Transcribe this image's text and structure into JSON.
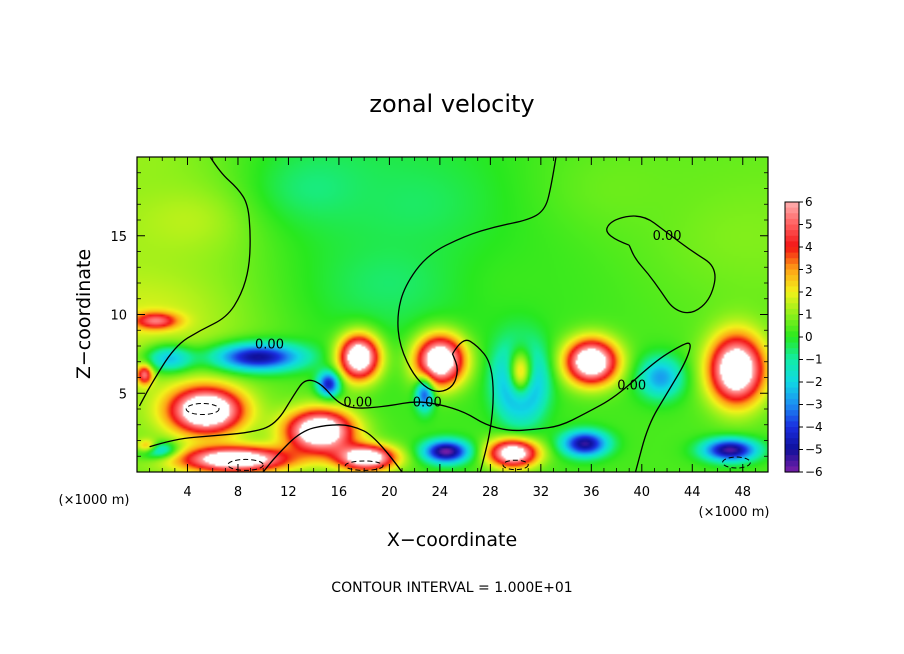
{
  "chart_data": {
    "type": "heatmap",
    "title": "zonal velocity",
    "xlabel": "X−coordinate",
    "ylabel": "Z−coordinate",
    "x_unit_left": "(×1000 m)",
    "x_unit_right": "(×1000 m)",
    "xlim": [
      0,
      50
    ],
    "ylim": [
      0,
      20
    ],
    "x_ticks": [
      {
        "value": 4,
        "label": "4"
      },
      {
        "value": 8,
        "label": "8"
      },
      {
        "value": 12,
        "label": "12"
      },
      {
        "value": 16,
        "label": "16"
      },
      {
        "value": 20,
        "label": "20"
      },
      {
        "value": 24,
        "label": "24"
      },
      {
        "value": 28,
        "label": "28"
      },
      {
        "value": 32,
        "label": "32"
      },
      {
        "value": 36,
        "label": "36"
      },
      {
        "value": 40,
        "label": "40"
      },
      {
        "value": 44,
        "label": "44"
      },
      {
        "value": 48,
        "label": "48"
      }
    ],
    "y_ticks": [
      {
        "value": 5,
        "label": "5"
      },
      {
        "value": 10,
        "label": "10"
      },
      {
        "value": 15,
        "label": "15"
      }
    ],
    "colorbar": {
      "min": -6,
      "max": 6,
      "labels": [
        "6",
        "5",
        "4",
        "3",
        "2",
        "1",
        "0",
        "−1",
        "−2",
        "−3",
        "−4",
        "−5",
        "−6"
      ],
      "values": [
        6,
        5,
        4,
        3,
        2,
        1,
        0,
        -1,
        -2,
        -3,
        -4,
        -5,
        -6
      ],
      "stops": [
        {
          "v": -6,
          "color": "#7a1fa8"
        },
        {
          "v": -5,
          "color": "#10109a"
        },
        {
          "v": -4,
          "color": "#1a2ee0"
        },
        {
          "v": -3,
          "color": "#1c8ff2"
        },
        {
          "v": -2,
          "color": "#10d8e4"
        },
        {
          "v": -1,
          "color": "#12eca6"
        },
        {
          "v": 0,
          "color": "#28e81e"
        },
        {
          "v": 1,
          "color": "#8ff01a"
        },
        {
          "v": 2,
          "color": "#f2f21a"
        },
        {
          "v": 3,
          "color": "#ffa216"
        },
        {
          "v": 4,
          "color": "#f21414"
        },
        {
          "v": 5,
          "color": "#ff5f5f"
        },
        {
          "v": 6,
          "color": "#ffb0b0"
        }
      ],
      "out_of_range_color": "#ffffff"
    },
    "contour_labels": [
      {
        "text": "0.00",
        "x": 10.5,
        "z": 8.1
      },
      {
        "text": "0.00",
        "x": 17.5,
        "z": 4.4
      },
      {
        "text": "0.00",
        "x": 23.0,
        "z": 4.4
      },
      {
        "text": "0.00",
        "x": 39.2,
        "z": 5.5
      },
      {
        "text": "0.00",
        "x": 42.0,
        "z": 15.0
      }
    ],
    "zero_contours": [
      [
        [
          5.8,
          20
        ],
        [
          6.6,
          19.0
        ],
        [
          8.0,
          18.0
        ],
        [
          8.8,
          17.0
        ],
        [
          9.0,
          15.0
        ],
        [
          8.9,
          13.0
        ],
        [
          8.3,
          11.3
        ],
        [
          7.1,
          9.8
        ],
        [
          5.0,
          9.0
        ],
        [
          3.0,
          8.0
        ],
        [
          1.0,
          5.4
        ],
        [
          0.2,
          4.2
        ]
      ],
      [
        [
          1.0,
          1.6
        ],
        [
          3.0,
          2.1
        ],
        [
          6.0,
          2.3
        ],
        [
          9.0,
          2.5
        ],
        [
          11.0,
          3.0
        ],
        [
          12.5,
          5.0
        ],
        [
          13.3,
          5.9
        ],
        [
          14.5,
          5.7
        ],
        [
          16.0,
          4.3
        ],
        [
          17.5,
          4.0
        ],
        [
          20.0,
          4.2
        ],
        [
          22.0,
          4.5
        ],
        [
          24.0,
          4.3
        ],
        [
          26.0,
          3.8
        ],
        [
          27.6,
          3.0
        ],
        [
          29.5,
          2.6
        ],
        [
          31.5,
          2.7
        ],
        [
          33.5,
          2.9
        ],
        [
          35.5,
          3.7
        ],
        [
          38.0,
          4.8
        ],
        [
          41.0,
          7.0
        ],
        [
          43.0,
          8.0
        ],
        [
          44.0,
          8.3
        ],
        [
          43.5,
          7.0
        ],
        [
          42.0,
          5.0
        ],
        [
          40.5,
          3.0
        ],
        [
          39.5,
          0.0
        ]
      ],
      [
        [
          21.0,
          0.0
        ],
        [
          19.0,
          2.2
        ],
        [
          17.0,
          3.0
        ],
        [
          15.0,
          3.0
        ],
        [
          13.0,
          2.6
        ],
        [
          11.0,
          1.0
        ],
        [
          10.0,
          0.0
        ]
      ],
      [
        [
          25.0,
          7.5
        ],
        [
          25.8,
          8.6
        ],
        [
          27.0,
          8.0
        ],
        [
          28.0,
          7.0
        ],
        [
          28.3,
          5.0
        ],
        [
          28.0,
          2.5
        ],
        [
          27.2,
          0.0
        ]
      ],
      [
        [
          33.2,
          20
        ],
        [
          32.8,
          18.0
        ],
        [
          32.3,
          16.6
        ],
        [
          31.0,
          16.0
        ],
        [
          28.5,
          15.6
        ],
        [
          26.0,
          15.0
        ],
        [
          23.0,
          13.8
        ],
        [
          21.2,
          11.8
        ],
        [
          20.6,
          10.0
        ],
        [
          20.8,
          8.0
        ],
        [
          22.0,
          6.0
        ],
        [
          23.5,
          5.0
        ],
        [
          25.0,
          5.3
        ],
        [
          25.5,
          6.5
        ],
        [
          25.0,
          7.5
        ]
      ],
      [
        [
          39.0,
          14.4
        ],
        [
          37.0,
          15.0
        ],
        [
          37.5,
          16.0
        ],
        [
          40.0,
          16.4
        ],
        [
          42.0,
          15.2
        ],
        [
          44.0,
          14.0
        ],
        [
          46.0,
          13.0
        ],
        [
          45.5,
          11.0
        ],
        [
          44.0,
          10.0
        ],
        [
          42.5,
          10.3
        ],
        [
          41.5,
          11.5
        ],
        [
          40.5,
          12.6
        ],
        [
          39.5,
          13.5
        ],
        [
          39.0,
          14.4
        ]
      ]
    ],
    "dashed_contours": [
      {
        "cx": 5.2,
        "cz": 4.0,
        "rx": 1.3,
        "rz": 0.35
      },
      {
        "cx": 8.6,
        "cz": 0.45,
        "rx": 1.4,
        "rz": 0.35
      },
      {
        "cx": 18.0,
        "cz": 0.4,
        "rx": 1.5,
        "rz": 0.3
      },
      {
        "cx": 30.0,
        "cz": 0.45,
        "rx": 1.0,
        "rz": 0.3
      },
      {
        "cx": 47.5,
        "cz": 0.6,
        "rx": 1.1,
        "rz": 0.35
      }
    ],
    "field": {
      "background": [
        {
          "x": 0,
          "z": 20,
          "v": 1.1
        },
        {
          "x": 4,
          "z": 16,
          "v": 1.6
        },
        {
          "x": 1,
          "z": 10,
          "v": 1.8
        },
        {
          "x": 14,
          "z": 18,
          "v": -0.9
        },
        {
          "x": 22,
          "z": 17,
          "v": -0.6
        },
        {
          "x": 20,
          "z": 12,
          "v": -0.7
        },
        {
          "x": 30,
          "z": 12,
          "v": 0.2
        },
        {
          "x": 38,
          "z": 18,
          "v": 0.7
        },
        {
          "x": 48,
          "z": 15,
          "v": 0.9
        }
      ],
      "cells": [
        {
          "x": 5.5,
          "z": 3.9,
          "rx": 3.2,
          "rz": 1.6,
          "v": 6.5
        },
        {
          "x": 9.5,
          "z": 7.3,
          "rx": 4.0,
          "rz": 1.0,
          "v": -4.6
        },
        {
          "x": 2.5,
          "z": 7.2,
          "rx": 2.2,
          "rz": 1.0,
          "v": -2.8
        },
        {
          "x": 1.5,
          "z": 9.6,
          "rx": 2.0,
          "rz": 0.6,
          "v": 3.0
        },
        {
          "x": 0.6,
          "z": 6.2,
          "rx": 0.7,
          "rz": 0.7,
          "v": 3.5
        },
        {
          "x": 14.5,
          "z": 2.6,
          "rx": 3.0,
          "rz": 1.5,
          "v": 6.5
        },
        {
          "x": 7.8,
          "z": 0.8,
          "rx": 4.8,
          "rz": 0.9,
          "v": 6.0
        },
        {
          "x": 1.5,
          "z": 1.4,
          "rx": 1.8,
          "rz": 0.6,
          "v": -3.0
        },
        {
          "x": 17.6,
          "z": 7.3,
          "rx": 1.8,
          "rz": 1.6,
          "v": 6.5
        },
        {
          "x": 15.2,
          "z": 5.6,
          "rx": 1.0,
          "rz": 0.9,
          "v": -4.0
        },
        {
          "x": 22.8,
          "z": 5.0,
          "rx": 0.8,
          "rz": 1.2,
          "v": -3.5
        },
        {
          "x": 24.0,
          "z": 7.1,
          "rx": 2.2,
          "rz": 1.8,
          "v": 6.5
        },
        {
          "x": 18.2,
          "z": 0.9,
          "rx": 2.6,
          "rz": 0.9,
          "v": 6.0
        },
        {
          "x": 24.5,
          "z": 1.3,
          "rx": 2.0,
          "rz": 0.8,
          "v": -5.0
        },
        {
          "x": 30.4,
          "z": 6.2,
          "rx": 1.2,
          "rz": 1.8,
          "v": 6.5
        },
        {
          "x": 30.4,
          "z": 5.8,
          "rx": 2.0,
          "rz": 2.6,
          "v": -5.2
        },
        {
          "x": 29.8,
          "z": 1.2,
          "rx": 2.2,
          "rz": 1.0,
          "v": 6.0
        },
        {
          "x": 36.0,
          "z": 7.0,
          "rx": 2.3,
          "rz": 1.6,
          "v": 6.5
        },
        {
          "x": 35.5,
          "z": 1.8,
          "rx": 2.0,
          "rz": 0.9,
          "v": -4.5
        },
        {
          "x": 41.5,
          "z": 6.0,
          "rx": 2.0,
          "rz": 1.5,
          "v": -2.5
        },
        {
          "x": 47.5,
          "z": 6.5,
          "rx": 2.4,
          "rz": 2.4,
          "v": 6.5
        },
        {
          "x": 47.0,
          "z": 1.4,
          "rx": 2.4,
          "rz": 0.8,
          "v": -4.8
        },
        {
          "x": 0.8,
          "z": 1.6,
          "rx": 1.0,
          "rz": 0.5,
          "v": 3.0
        }
      ]
    }
  },
  "footer": {
    "contour_interval": "CONTOUR INTERVAL = 1.000E+01"
  }
}
